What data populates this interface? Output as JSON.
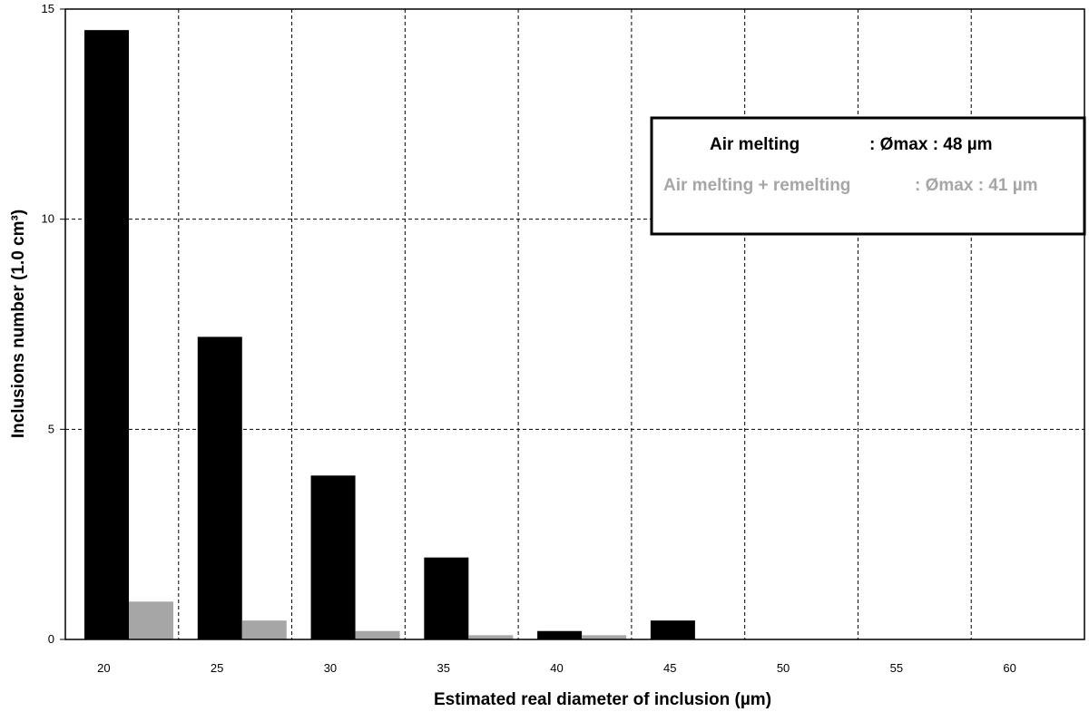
{
  "chart_data": {
    "type": "bar",
    "xlabel": "Estimated  real diameter of inclusion (µm)",
    "ylabel": "Inclusions number (1.0 cm³)",
    "ylim": [
      0,
      15
    ],
    "yticks": [
      "0",
      "5",
      "10",
      "15"
    ],
    "xticks": [
      "20",
      "25",
      "30",
      "35",
      "40",
      "45",
      "50",
      "55",
      "60"
    ],
    "grid": true,
    "series": [
      {
        "name": "Air melting",
        "color": "#000000",
        "values": [
          14.5,
          7.2,
          3.9,
          1.95,
          0.2,
          0.45,
          0,
          0,
          0
        ]
      },
      {
        "name": "Air melting + remelting",
        "color": "#a6a6a6",
        "values": [
          0.9,
          0.45,
          0.2,
          0.1,
          0.1,
          0,
          0,
          0,
          0
        ]
      }
    ],
    "legend": {
      "placement": "top-right",
      "entries": [
        {
          "label": "Air melting",
          "value": ": Ømax  : 48 µm",
          "color": "#000000"
        },
        {
          "label": "Air melting + remelting",
          "value": ": Ømax  : 41 µm",
          "color": "#a6a6a6"
        }
      ]
    }
  }
}
